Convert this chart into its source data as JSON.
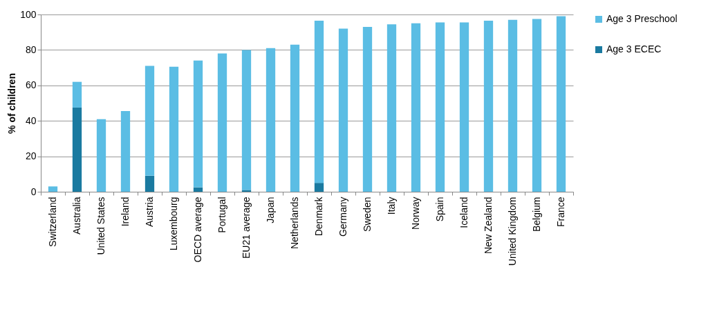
{
  "chart_data": {
    "type": "bar",
    "stacked": true,
    "ylabel": "% of children",
    "categories": [
      "Switzerland",
      "Australia",
      "United States",
      "Ireland",
      "Austria",
      "Luxembourg",
      "OECD average",
      "Portugal",
      "EU21 average",
      "Japan",
      "Netherlands",
      "Denmark",
      "Germany",
      "Sweden",
      "Italy",
      "Norway",
      "Spain",
      "Iceland",
      "New Zealand",
      "United Kingdom",
      "Belgium",
      "France"
    ],
    "series": [
      {
        "name": "Age 3 ECEC",
        "color": "#1a7aa0",
        "values": [
          null,
          47.5,
          null,
          null,
          9,
          null,
          2.5,
          null,
          1,
          null,
          null,
          5,
          null,
          null,
          null,
          null,
          null,
          null,
          null,
          null,
          null,
          null
        ]
      },
      {
        "name": "Age 3 Preschool",
        "color": "#5bbde4",
        "values": [
          3,
          14.5,
          41,
          45.5,
          62,
          70.5,
          71.5,
          78,
          79,
          81,
          83,
          91.5,
          92,
          93,
          94.5,
          95,
          95.5,
          95.5,
          96.5,
          97,
          97.5,
          99
        ]
      }
    ],
    "ylim": [
      0,
      100
    ],
    "yticks": [
      0,
      20,
      40,
      60,
      80,
      100
    ],
    "grid": "y",
    "legend": "right"
  }
}
